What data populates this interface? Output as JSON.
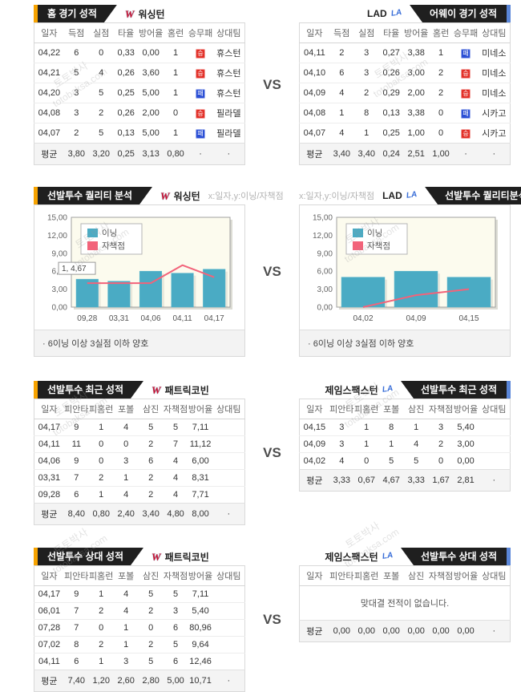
{
  "vs_label": "VS",
  "watermark": {
    "name": "토토박사",
    "domain": "totobaksa.com"
  },
  "icons": {
    "washington": "W",
    "lad": "LA"
  },
  "colors": {
    "banner_bg": "#1f1f1f",
    "accent_left": "#f7a300",
    "accent_right": "#5a86d8",
    "win_badge": "#e23028",
    "loss_badge": "#2b4fd5",
    "bar": "#4aabc4",
    "line": "#f2637a",
    "plot_bg": "#fcfbee"
  },
  "sections": {
    "games": {
      "left": {
        "banner": "홈 경기 성적",
        "team": "워싱턴",
        "table": {
          "columns": [
            "일자",
            "득점",
            "실점",
            "타율",
            "방어율",
            "홈런",
            "승무패",
            "상대팀"
          ],
          "rows": [
            [
              "04,22",
              "6",
              "0",
              "0,33",
              "0,00",
              "1",
              {
                "badge": "win",
                "text": "승"
              },
              "휴스턴"
            ],
            [
              "04,21",
              "5",
              "4",
              "0,26",
              "3,60",
              "1",
              {
                "badge": "win",
                "text": "승"
              },
              "휴스턴"
            ],
            [
              "04,20",
              "3",
              "5",
              "0,25",
              "5,00",
              "1",
              {
                "badge": "loss",
                "text": "패"
              },
              "휴스턴"
            ],
            [
              "04,08",
              "3",
              "2",
              "0,26",
              "2,00",
              "0",
              {
                "badge": "win",
                "text": "승"
              },
              "필라델"
            ],
            [
              "04,07",
              "2",
              "5",
              "0,13",
              "5,00",
              "1",
              {
                "badge": "loss",
                "text": "패"
              },
              "필라델"
            ]
          ],
          "avg": [
            "평균",
            "3,80",
            "3,20",
            "0,25",
            "3,13",
            "0,80",
            "·",
            "·"
          ]
        }
      },
      "right": {
        "banner": "어웨이 경기 성적",
        "team": "LAD",
        "table": {
          "columns": [
            "일자",
            "득점",
            "실점",
            "타율",
            "방어율",
            "홈런",
            "승무패",
            "상대팀"
          ],
          "rows": [
            [
              "04,11",
              "2",
              "3",
              "0,27",
              "3,38",
              "1",
              {
                "badge": "loss",
                "text": "패"
              },
              "미네소"
            ],
            [
              "04,10",
              "6",
              "3",
              "0,26",
              "3,00",
              "2",
              {
                "badge": "win",
                "text": "승"
              },
              "미네소"
            ],
            [
              "04,09",
              "4",
              "2",
              "0,29",
              "2,00",
              "2",
              {
                "badge": "win",
                "text": "승"
              },
              "미네소"
            ],
            [
              "04,08",
              "1",
              "8",
              "0,13",
              "3,38",
              "0",
              {
                "badge": "loss",
                "text": "패"
              },
              "시카고"
            ],
            [
              "04,07",
              "4",
              "1",
              "0,25",
              "1,00",
              "0",
              {
                "badge": "win",
                "text": "승"
              },
              "시카고"
            ]
          ],
          "avg": [
            "평균",
            "3,40",
            "3,40",
            "0,24",
            "2,51",
            "1,00",
            "·",
            "·"
          ]
        }
      }
    },
    "quality": {
      "left": {
        "banner": "선발투수 퀄리티 분석",
        "team": "워싱턴",
        "axis_note": "x:일자,y:이닝/자책점",
        "note": "· 6이닝 이상 3실점 이하 양호"
      },
      "right": {
        "banner": "선발투수 퀄리티분석",
        "team": "LAD",
        "axis_note": "x:일자,y:이닝/자책점",
        "note": "· 6이닝 이상 3실점 이하 양호"
      }
    },
    "recent": {
      "left": {
        "banner": "선발투수 최근 성적",
        "team": "패트릭코빈",
        "table": {
          "columns": [
            "일자",
            "피안타",
            "피홈런",
            "포볼",
            "삼진",
            "자책점",
            "방어율",
            "상대팀"
          ],
          "rows": [
            [
              "04,17",
              "9",
              "1",
              "4",
              "5",
              "5",
              "7,11",
              ""
            ],
            [
              "04,11",
              "11",
              "0",
              "0",
              "2",
              "7",
              "11,12",
              ""
            ],
            [
              "04,06",
              "9",
              "0",
              "3",
              "6",
              "4",
              "6,00",
              ""
            ],
            [
              "03,31",
              "7",
              "2",
              "1",
              "2",
              "4",
              "8,31",
              ""
            ],
            [
              "09,28",
              "6",
              "1",
              "4",
              "2",
              "4",
              "7,71",
              ""
            ]
          ],
          "avg": [
            "평균",
            "8,40",
            "0,80",
            "2,40",
            "3,40",
            "4,80",
            "8,00",
            "·"
          ]
        }
      },
      "right": {
        "banner": "선발투수 최근 성적",
        "team": "제임스팩스턴",
        "table": {
          "columns": [
            "일자",
            "피안타",
            "피홈런",
            "포볼",
            "삼진",
            "자책점",
            "방어율",
            "상대팀"
          ],
          "rows": [
            [
              "04,15",
              "3",
              "1",
              "8",
              "1",
              "3",
              "5,40",
              ""
            ],
            [
              "04,09",
              "3",
              "1",
              "1",
              "4",
              "2",
              "3,00",
              ""
            ],
            [
              "04,02",
              "4",
              "0",
              "5",
              "5",
              "0",
              "0,00",
              ""
            ]
          ],
          "avg": [
            "평균",
            "3,33",
            "0,67",
            "4,67",
            "3,33",
            "1,67",
            "2,81",
            "·"
          ]
        }
      }
    },
    "h2h": {
      "left": {
        "banner": "선발투수 상대 성적",
        "team": "패트릭코빈",
        "table": {
          "columns": [
            "일자",
            "피안타",
            "피홈런",
            "포볼",
            "삼진",
            "자책점",
            "방어율",
            "상대팀"
          ],
          "rows": [
            [
              "04,17",
              "9",
              "1",
              "4",
              "5",
              "5",
              "7,11",
              ""
            ],
            [
              "06,01",
              "7",
              "2",
              "4",
              "2",
              "3",
              "5,40",
              ""
            ],
            [
              "07,28",
              "7",
              "0",
              "1",
              "0",
              "6",
              "80,96",
              ""
            ],
            [
              "07,02",
              "8",
              "2",
              "1",
              "2",
              "5",
              "9,64",
              ""
            ],
            [
              "04,11",
              "6",
              "1",
              "3",
              "5",
              "6",
              "12,46",
              ""
            ]
          ],
          "avg": [
            "평균",
            "7,40",
            "1,20",
            "2,60",
            "2,80",
            "5,00",
            "10,71",
            "·"
          ]
        }
      },
      "right": {
        "banner": "선발투수 상대 성적",
        "team": "제임스팩스턴",
        "table": {
          "columns": [
            "일자",
            "피안타",
            "피홈런",
            "포볼",
            "삼진",
            "자책점",
            "방어율",
            "상대팀"
          ],
          "rows": [],
          "empty": "맞대결 전적이 없습니다.",
          "avg": [
            "평균",
            "0,00",
            "0,00",
            "0,00",
            "0,00",
            "0,00",
            "0,00",
            "·"
          ]
        }
      }
    }
  },
  "chart_data": [
    {
      "type": "bar",
      "title": "선발투수 퀄리티 분석 - 워싱턴",
      "categories": [
        "09,28",
        "03,31",
        "04,06",
        "04,11",
        "04,17"
      ],
      "series": [
        {
          "name": "이닝",
          "type": "bar",
          "values": [
            4.67,
            4.33,
            6.0,
            5.67,
            6.33
          ]
        },
        {
          "name": "자책점",
          "type": "line",
          "values": [
            4,
            4,
            4,
            7,
            5
          ]
        }
      ],
      "xlabel": "일자",
      "ylabel": "이닝/자책점",
      "ylim": [
        0,
        15
      ],
      "yticks": [
        "0,00",
        "3,00",
        "6,00",
        "9,00",
        "12,00",
        "15,00"
      ],
      "legend_position": "top-left",
      "tooltip": "1, 4,67",
      "grid": false
    },
    {
      "type": "bar",
      "title": "선발투수 퀄리티분석 - LAD",
      "categories": [
        "04,02",
        "04,09",
        "04,15"
      ],
      "series": [
        {
          "name": "이닝",
          "type": "bar",
          "values": [
            5,
            6,
            5
          ]
        },
        {
          "name": "자책점",
          "type": "line",
          "values": [
            0,
            2,
            3
          ]
        }
      ],
      "xlabel": "일자",
      "ylabel": "이닝/자책점",
      "ylim": [
        0,
        15
      ],
      "yticks": [
        "0,00",
        "3,00",
        "6,00",
        "9,00",
        "12,00",
        "15,00"
      ],
      "legend_position": "top-left",
      "grid": false
    }
  ]
}
